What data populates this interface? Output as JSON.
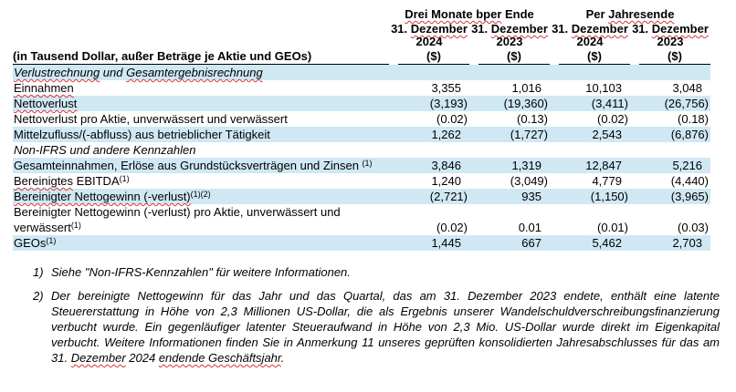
{
  "table": {
    "col_groups": [
      {
        "label": [
          [
            "Drei Monate bper",
            1
          ],
          [
            " Ende",
            0
          ]
        ]
      },
      {
        "label": [
          [
            "Per ",
            0
          ],
          [
            "Jahresende",
            1
          ]
        ]
      }
    ],
    "columns": [
      {
        "date": [
          [
            "31. ",
            0
          ],
          [
            "Dezember",
            1
          ]
        ],
        "year": "2024"
      },
      {
        "date": [
          [
            "31. ",
            0
          ],
          [
            "Dezember",
            1
          ]
        ],
        "year": "2023"
      },
      {
        "date": [
          [
            "31. ",
            0
          ],
          [
            "Dezember",
            1
          ]
        ],
        "year": "2024"
      },
      {
        "date": [
          [
            "31. ",
            0
          ],
          [
            "Dezember",
            1
          ]
        ],
        "year": "2023"
      }
    ],
    "unit": "($)",
    "row_label_header": "(in Tausend Dollar, außer Beträge je Aktie und GEOs)",
    "rows": [
      {
        "label": [
          [
            "Verlustrechnung",
            1
          ],
          [
            " und ",
            0
          ],
          [
            "Gesamtergebnisrechnung",
            1
          ]
        ],
        "section": true,
        "shaded": true
      },
      {
        "label": [
          [
            "Einnahmen",
            1
          ]
        ],
        "shaded": false,
        "values": [
          "3,355",
          "1,016",
          "10,103",
          "3,048"
        ]
      },
      {
        "label": [
          [
            "Nettoverlust",
            1
          ]
        ],
        "shaded": true,
        "values": [
          "(3,193)",
          "(19,360)",
          "(3,411)",
          "(26,756)"
        ]
      },
      {
        "label": [
          [
            "Nettoverlust pro Aktie, unverwässert und verwässert",
            0
          ]
        ],
        "shaded": false,
        "values": [
          "(0.02)",
          "(0.13)",
          "(0.02)",
          "(0.18)"
        ]
      },
      {
        "label": [
          [
            "Mittelzufluss/(-abfluss) aus betrieblicher Tätigkeit",
            0
          ]
        ],
        "shaded": true,
        "values": [
          "1,262",
          "(1,727)",
          "2,543",
          "(6,876)"
        ]
      },
      {
        "label": [
          [
            "Non-IFRS und andere Kennzahlen",
            0
          ]
        ],
        "section": true,
        "shaded": false
      },
      {
        "label": [
          [
            "Gesamteinnahmen, Erlöse aus Grundstücksverträgen und Zinsen ",
            0
          ]
        ],
        "sup": "(1)",
        "shaded": true,
        "values": [
          "3,846",
          "1,319",
          "12,847",
          "5,216"
        ]
      },
      {
        "label": [
          [
            "Bereinigtes",
            1
          ],
          [
            " EBITDA",
            0
          ]
        ],
        "sup": "(1)",
        "shaded": false,
        "values": [
          "1,240",
          "(3,049)",
          "4,779",
          "(4,440)"
        ]
      },
      {
        "label": [
          [
            "Bereinigter Nettogewinn (-verlust)",
            1
          ]
        ],
        "sup": "(1)(2)",
        "shaded": true,
        "values": [
          "(2,721)",
          "935",
          "(1,150)",
          "(3,965)"
        ]
      },
      {
        "label": [
          [
            "Bereinigter Nettogewinn (-verlust) pro Aktie, unverwässert und verwässert",
            0
          ]
        ],
        "sup": "(1)",
        "shaded": false,
        "values": [
          "(0.02)",
          "0.01",
          "(0.01)",
          "(0.03)"
        ]
      },
      {
        "label": [
          [
            "GEOs",
            0
          ]
        ],
        "sup": "(1)",
        "shaded": true,
        "values": [
          "1,445",
          "667",
          "5,462",
          "2,703"
        ]
      }
    ]
  },
  "footnotes": [
    {
      "num": "1)",
      "justify": false,
      "segments": [
        [
          "Siehe \"Non-IFRS-Kennzahlen\" für weitere Informationen.",
          0
        ]
      ]
    },
    {
      "num": "2)",
      "justify": true,
      "segments": [
        [
          "Der bereinigte Nettogewinn für das Jahr und das Quartal, das am 31. Dezember 2023 endete, enthält eine latente Steuererstattung in Höhe von 2,3 Millionen US-Dollar, die als Ergebnis unserer Wandelschuldverschreibungsfinanzierung verbucht wurde. Ein gegenläufiger latenter Steueraufwand in Höhe von 2,3 Mio. US-Dollar wurde direkt im Eigenkapital verbucht. Weitere Informationen finden Sie in Anmerkung 11 unseres geprüften konsolidierten Jahresabschlusses für das am 31. ",
          0
        ],
        [
          "Dezember",
          1
        ],
        [
          " 2024 ",
          0
        ],
        [
          "endende Geschäftsjahr",
          1
        ],
        [
          ".",
          0
        ]
      ]
    }
  ],
  "colors": {
    "band": "#cfe8f4",
    "squiggle": "#e03232",
    "rule": "#000000"
  }
}
